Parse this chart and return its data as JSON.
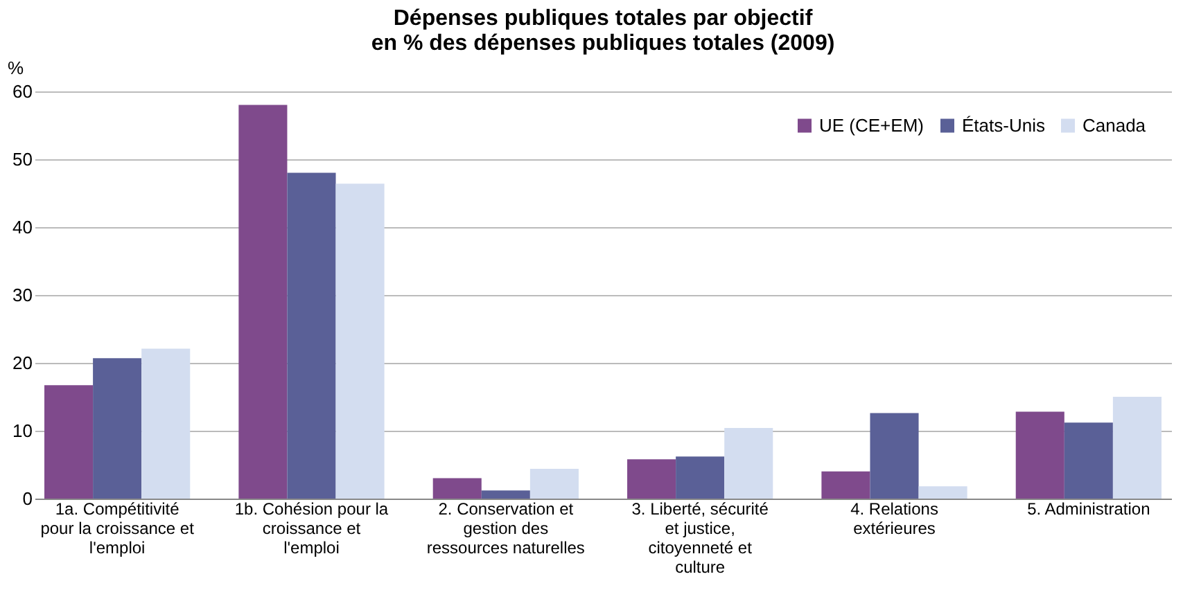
{
  "chart_data": {
    "type": "bar",
    "title": [
      "Dépenses publiques totales par objectif",
      "en % des dépenses publiques totales (2009)"
    ],
    "ylabel": "%",
    "categories": [
      "1a. Compétitivité pour la croissance et l'emploi",
      "1b. Cohésion pour la croissance et l'emploi",
      "2. Conservation et gestion des ressources naturelles",
      "3. Liberté, sécurité et justice, citoyenneté et culture",
      "4. Relations extérieures",
      "5. Administration"
    ],
    "series": [
      {
        "name": "UE (CE+EM)",
        "color": "#7f4a8c",
        "values": [
          16.7,
          58.0,
          3.0,
          5.8,
          4.0,
          12.8
        ]
      },
      {
        "name": "États-Unis",
        "color": "#5a6097",
        "values": [
          20.7,
          48.0,
          1.2,
          6.2,
          12.6,
          11.2
        ]
      },
      {
        "name": "Canada",
        "color": "#d3ddf0",
        "values": [
          22.1,
          46.4,
          4.4,
          10.4,
          1.8,
          15.0
        ]
      }
    ],
    "ylim": [
      0,
      60
    ],
    "yticks": [
      0,
      10,
      20,
      30,
      40,
      50,
      60
    ],
    "grid": "y",
    "legend": "top right"
  }
}
